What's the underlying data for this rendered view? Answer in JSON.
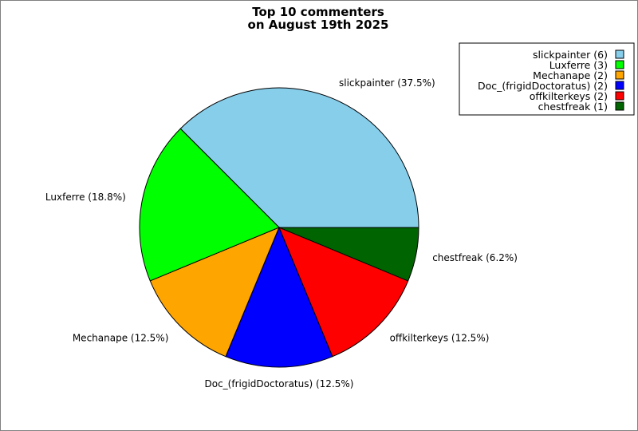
{
  "chart_data": {
    "type": "pie",
    "title_lines": [
      "Top 10 commenters",
      "on August 19th 2025"
    ],
    "slices": [
      {
        "name": "slickpainter",
        "value": 6,
        "percent_label": "slickpainter (37.5%)",
        "legend_label": "slickpainter (6)",
        "color": "#87CEEB"
      },
      {
        "name": "Luxferre",
        "value": 3,
        "percent_label": "Luxferre (18.8%)",
        "legend_label": "Luxferre (3)",
        "color": "#00FF00"
      },
      {
        "name": "Mechanape",
        "value": 2,
        "percent_label": "Mechanape (12.5%)",
        "legend_label": "Mechanape (2)",
        "color": "#FFA500"
      },
      {
        "name": "Doc_(frigidDoctoratus)",
        "value": 2,
        "percent_label": "Doc_(frigidDoctoratus) (12.5%)",
        "legend_label": "Doc_(frigidDoctoratus) (2)",
        "color": "#0000FF"
      },
      {
        "name": "offkilterkeys",
        "value": 2,
        "percent_label": "offkilterkeys (12.5%)",
        "legend_label": "offkilterkeys (2)",
        "color": "#FF0000"
      },
      {
        "name": "chestfreak",
        "value": 1,
        "percent_label": "chestfreak (6.2%)",
        "legend_label": "chestfreak (1)",
        "color": "#006400"
      }
    ],
    "legend_position": "top-right",
    "start_angle": "right",
    "direction": "counterclockwise"
  }
}
